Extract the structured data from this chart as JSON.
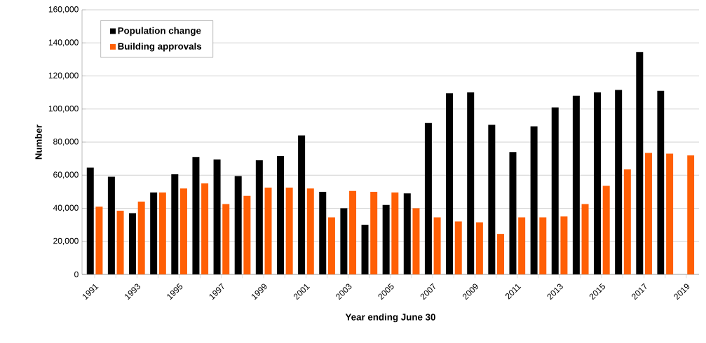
{
  "chart_data": {
    "type": "bar",
    "xlabel": "Year ending June 30",
    "ylabel": "Number",
    "categories": [
      "1991",
      null,
      "1993",
      null,
      "1995",
      null,
      "1997",
      null,
      "1999",
      null,
      "2001",
      null,
      "2003",
      null,
      "2005",
      null,
      "2007",
      null,
      "2009",
      null,
      "2011",
      null,
      "2013",
      null,
      "2015",
      null,
      "2017",
      null,
      "2019"
    ],
    "series": [
      {
        "name": "Population change",
        "color": "#000000",
        "values": [
          64500,
          59000,
          37000,
          49500,
          60500,
          71000,
          69500,
          59500,
          69000,
          71500,
          84000,
          50000,
          40000,
          30000,
          42000,
          49000,
          91500,
          109500,
          110000,
          90500,
          74000,
          89500,
          101000,
          108000,
          110000,
          111500,
          134500,
          111000,
          null
        ]
      },
      {
        "name": "Building approvals",
        "color": "#ff5f05",
        "values": [
          41000,
          38500,
          44000,
          49500,
          52000,
          55000,
          42500,
          47500,
          52500,
          52500,
          52000,
          34500,
          50500,
          50000,
          49500,
          40000,
          34500,
          32000,
          31500,
          24500,
          34500,
          34500,
          35000,
          42500,
          53500,
          63500,
          73500,
          73000,
          72000
        ]
      }
    ],
    "ylim": [
      0,
      160000
    ],
    "yticks": [
      0,
      {
        "value": 20000,
        "label": "20,000"
      },
      {
        "value": 40000,
        "label": "40,000"
      },
      {
        "value": 60000,
        "label": "60,000"
      },
      {
        "value": 80000,
        "label": "80,000"
      },
      {
        "value": 100000,
        "label": "100,000"
      },
      {
        "value": 120000,
        "label": "120,000"
      },
      {
        "value": 140000,
        "label": "140,000"
      },
      {
        "value": 160000,
        "label": "160,000"
      }
    ],
    "grid": "y",
    "legend": "top left"
  }
}
